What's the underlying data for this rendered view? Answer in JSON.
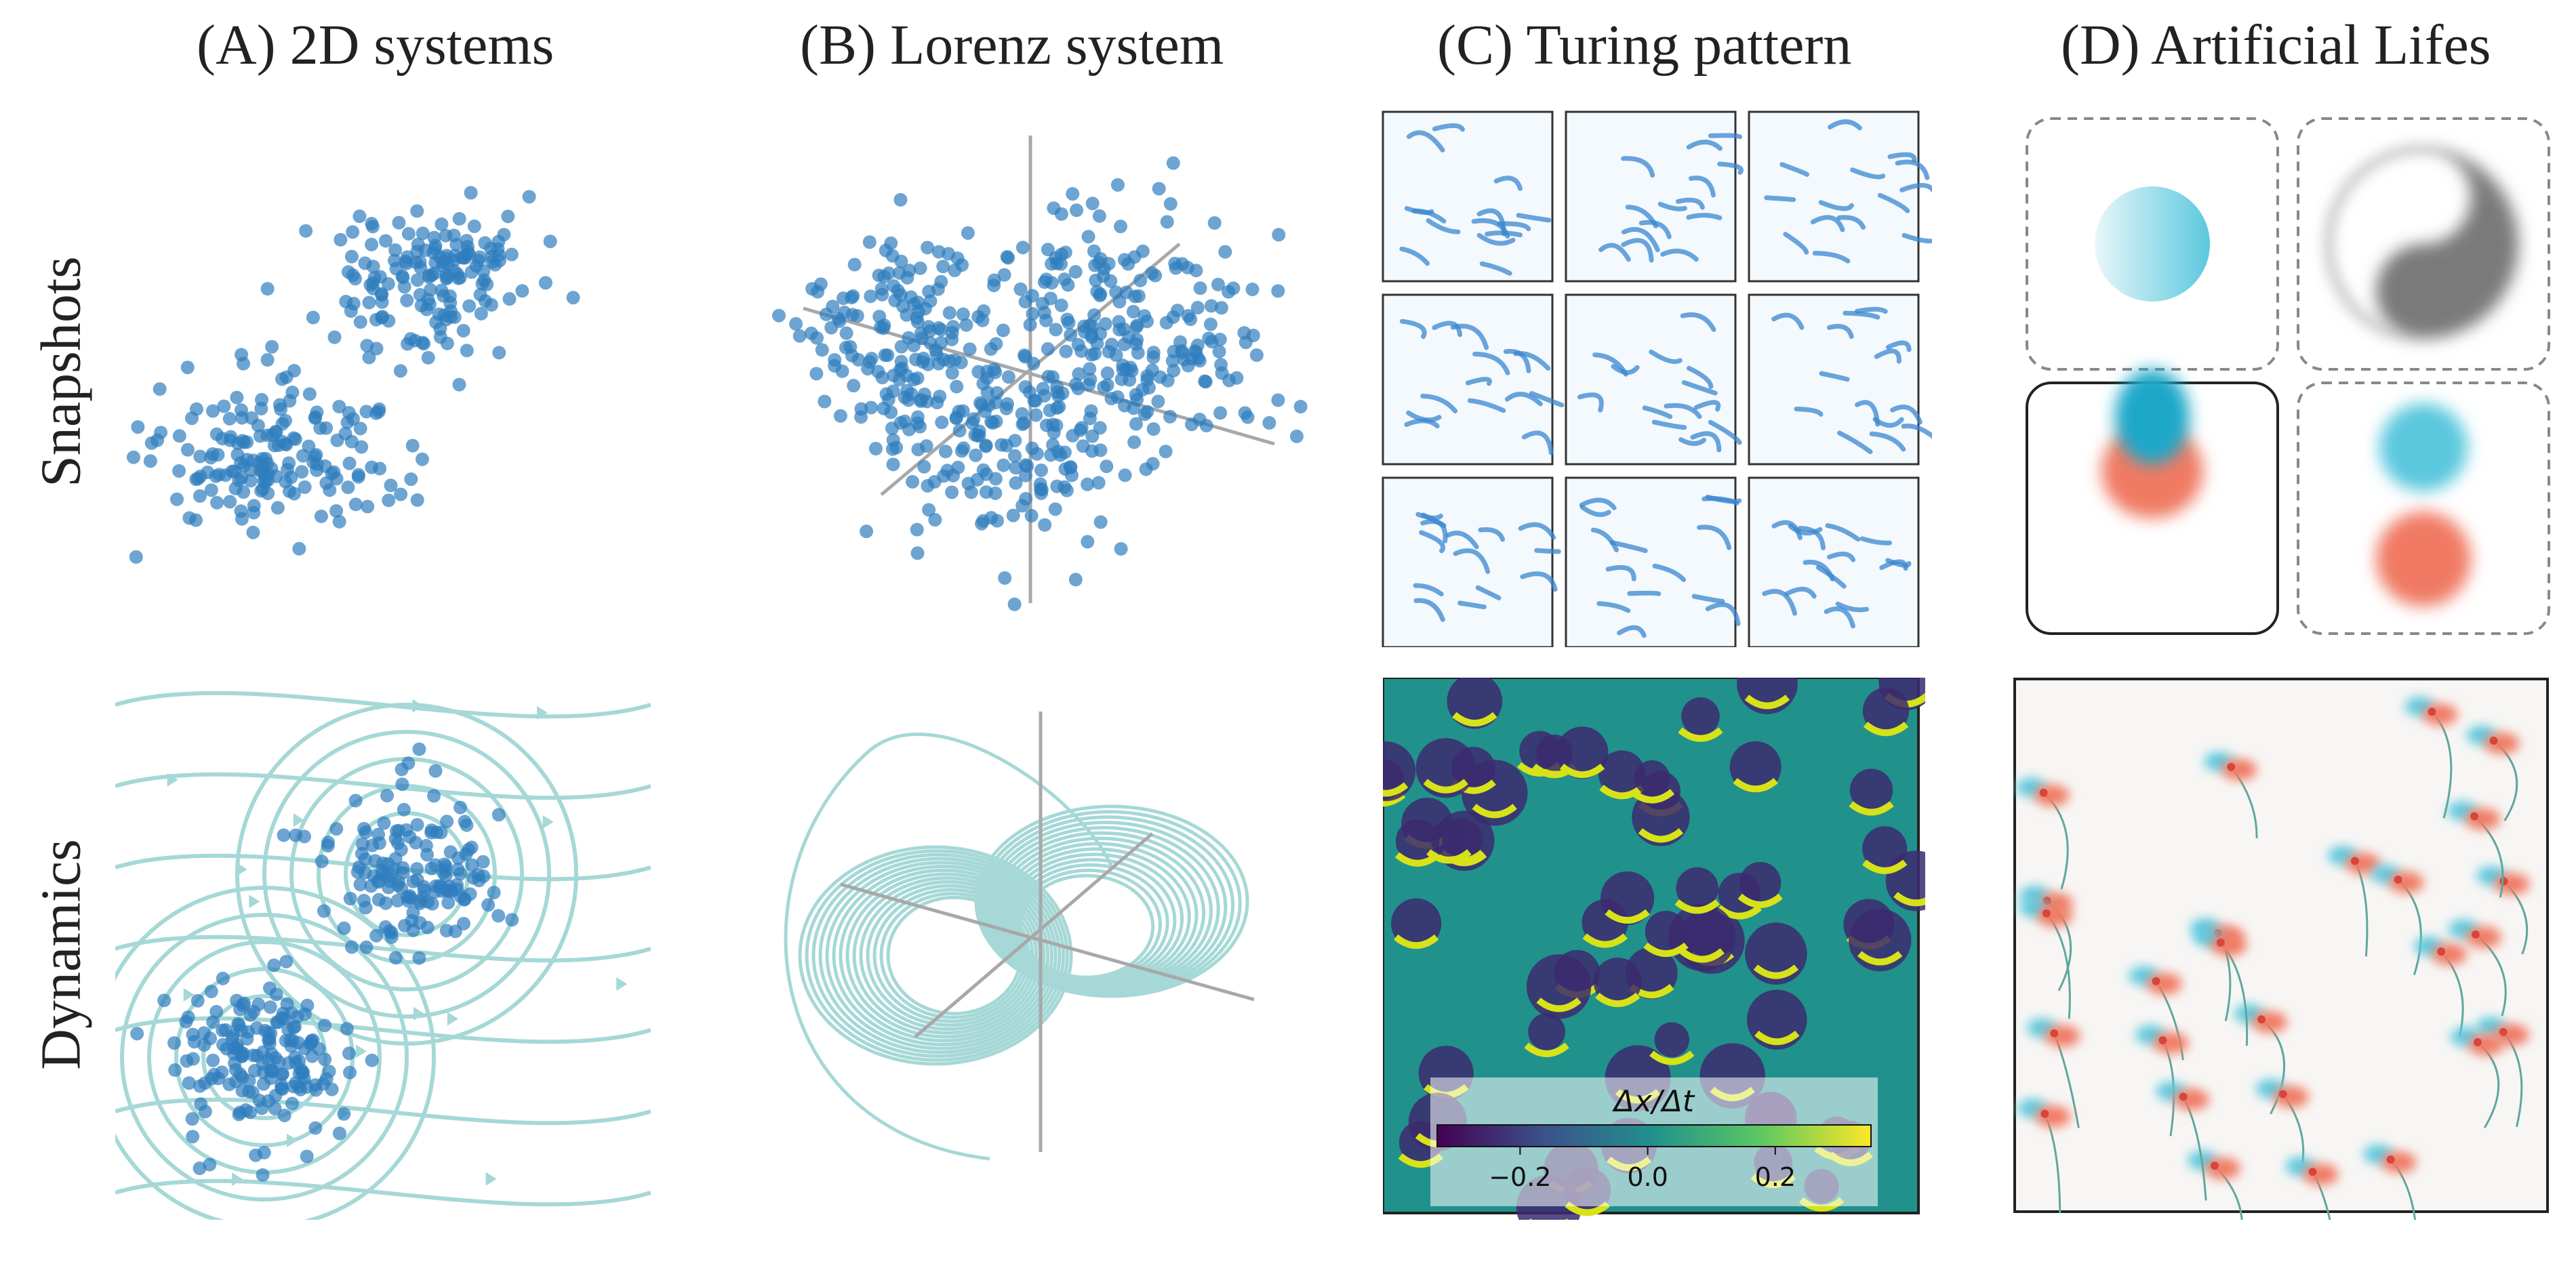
{
  "figure": {
    "columns": [
      {
        "title": "(A) 2D systems"
      },
      {
        "title": "(B) Lorenz system"
      },
      {
        "title": "(C) Turing pattern"
      },
      {
        "title": "(D) Artificial Lifes"
      }
    ],
    "rows": [
      {
        "label": "Snapshots"
      },
      {
        "label": "Dynamics"
      }
    ],
    "colorbar": {
      "label": "Δx/Δt",
      "ticks": [
        "−0.2",
        "0.0",
        "0.2"
      ],
      "range": [
        -0.33,
        0.35
      ],
      "colormap": "viridis"
    }
  },
  "colors": {
    "point_blue": "#2f7dbd",
    "stream_teal": "#a5d8d6",
    "axis_gray": "#a8a8a8",
    "cyan": "#5cc8de",
    "salmon": "#f07a63",
    "pattern_blue": "#3a86cf"
  }
}
